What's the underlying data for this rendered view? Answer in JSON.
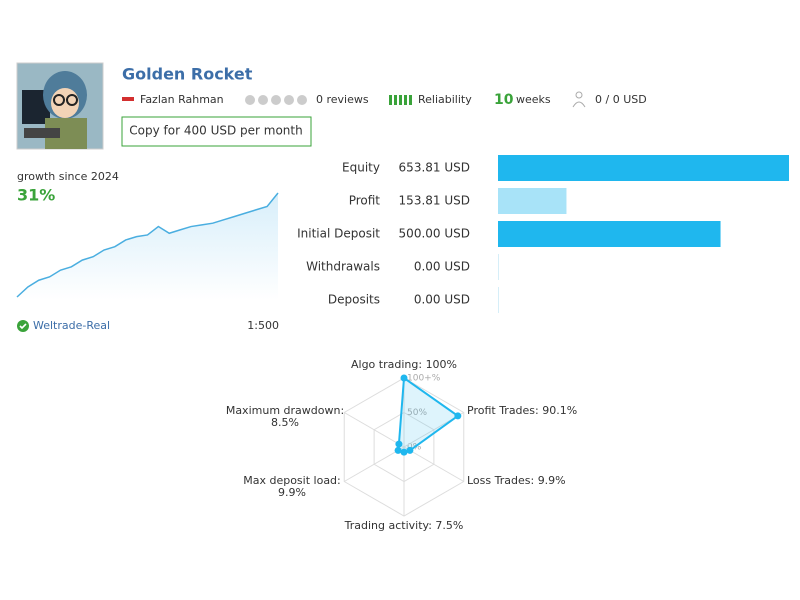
{
  "header": {
    "title": "Golden Rocket",
    "author": "Fazlan Rahman",
    "reviews": "0 reviews",
    "reliability": "Reliability",
    "weeks_value": "10",
    "weeks_unit": "weeks",
    "subscribers": "0 / 0 USD",
    "copy_button": "Copy for 400 USD per month"
  },
  "growth": {
    "caption": "growth since 2024",
    "value_label": "31%",
    "values": [
      0,
      3,
      5,
      6,
      8,
      9,
      11,
      12,
      14,
      15,
      17,
      18,
      18.5,
      21,
      19,
      20,
      21,
      21.5,
      22,
      23,
      24,
      25,
      26,
      27,
      31
    ]
  },
  "account": {
    "broker": "Weltrade-Real",
    "leverage": "1:500"
  },
  "balance_bars": {
    "rows": [
      {
        "label": "Equity",
        "value": 653.81,
        "value_label": "653.81 USD",
        "color": "#1fb7ee"
      },
      {
        "label": "Profit",
        "value": 153.81,
        "value_label": "153.81 USD",
        "color": "#a8e3f8"
      },
      {
        "label": "Initial Deposit",
        "value": 500.0,
        "value_label": "500.00 USD",
        "color": "#1fb7ee"
      },
      {
        "label": "Withdrawals",
        "value": 0.0,
        "value_label": "0.00 USD",
        "color": "#1fb7ee"
      },
      {
        "label": "Deposits",
        "value": 0.0,
        "value_label": "0.00 USD",
        "color": "#1fb7ee"
      }
    ]
  },
  "radar": {
    "rlim": [
      0,
      100
    ],
    "rticks": [
      {
        "value": 0,
        "label": "0%"
      },
      {
        "value": 50,
        "label": "50%"
      },
      {
        "value": 100,
        "label": "100+%"
      }
    ],
    "color": "#1fb7ee",
    "axes": [
      {
        "name": "Algo trading:",
        "value": 100,
        "value_label": "100%"
      },
      {
        "name": "Profit Trades:",
        "value": 90.1,
        "value_label": "90.1%"
      },
      {
        "name": "Loss Trades:",
        "value": 9.9,
        "value_label": "9.9%"
      },
      {
        "name": "Trading activity:",
        "value": 7.5,
        "value_label": "7.5%"
      },
      {
        "name": "Max deposit load:",
        "value": 9.9,
        "value_label": "9.9%"
      },
      {
        "name": "Maximum drawdown:",
        "value": 8.5,
        "value_label": "8.5%"
      }
    ]
  }
}
